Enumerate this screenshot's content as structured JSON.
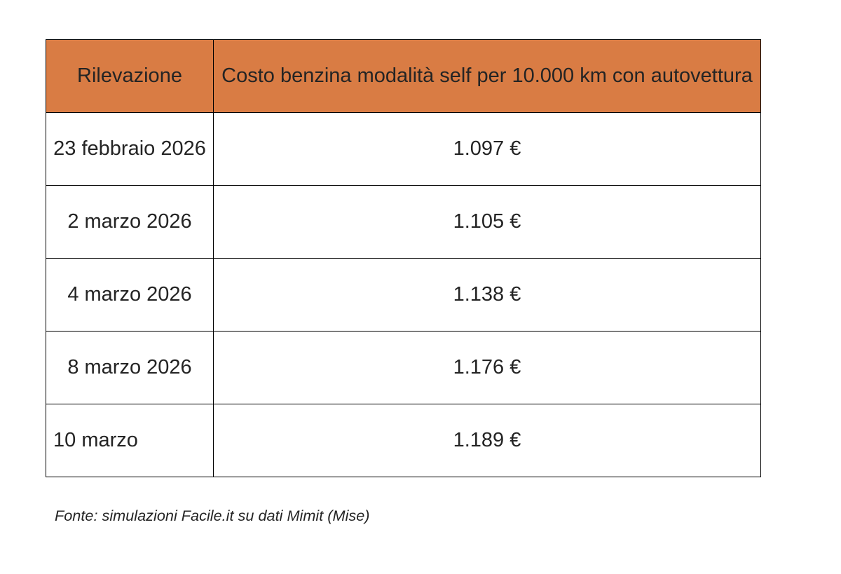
{
  "page": {
    "background": "#ffffff"
  },
  "table": {
    "header_bg": "#d97c44",
    "border_color": "#000000",
    "text_color": "#242424",
    "columns": [
      {
        "label": "Rilevazione"
      },
      {
        "label": "Costo benzina modalità self per 10.000 km con autovettura"
      }
    ],
    "rows": [
      {
        "date": "23 febbraio 2026",
        "cost": "1.097 €",
        "date_align": "center"
      },
      {
        "date": "2 marzo 2026",
        "cost": "1.105 €",
        "date_align": "center"
      },
      {
        "date": "4 marzo 2026",
        "cost": "1.138 €",
        "date_align": "center"
      },
      {
        "date": "8 marzo 2026",
        "cost": "1.176 €",
        "date_align": "center"
      },
      {
        "date": "10 marzo",
        "cost": "1.189 €",
        "date_align": "left"
      }
    ]
  },
  "footer": {
    "source_note": "Fonte: simulazioni Facile.it su dati Mimit (Mise)"
  },
  "chart_data": {
    "type": "table",
    "title": "Costo benzina modalità self per 10.000 km con autovettura",
    "columns": [
      "Rilevazione",
      "Costo benzina modalità self per 10.000 km con autovettura"
    ],
    "categories": [
      "23 febbraio 2026",
      "2 marzo 2026",
      "4 marzo 2026",
      "8 marzo 2026",
      "10 marzo"
    ],
    "values_eur": [
      1097,
      1105,
      1138,
      1176,
      1189
    ],
    "values_text": [
      "1.097 €",
      "1.105 €",
      "1.138 €",
      "1.176 €",
      "1.189 €"
    ],
    "source": "Fonte: simulazioni Facile.it su dati Mimit (Mise)"
  }
}
